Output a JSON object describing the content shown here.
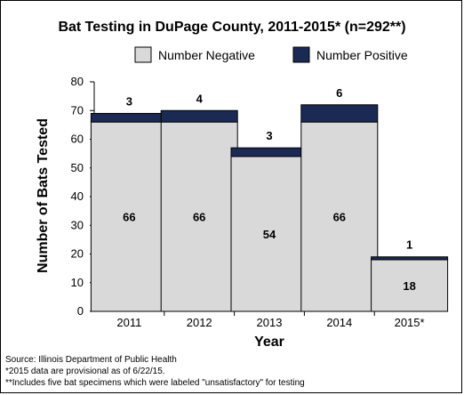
{
  "chart_data": {
    "type": "bar",
    "stacked": true,
    "title": "Bat Testing in DuPage County, 2011-2015* (n=292**)",
    "xlabel": "Year",
    "ylabel": "Number of Bats Tested",
    "categories": [
      "2011",
      "2012",
      "2013",
      "2014",
      "2015*"
    ],
    "series": [
      {
        "name": "Number Negative",
        "values": [
          66,
          66,
          54,
          66,
          18
        ],
        "color": "#d9d9d9"
      },
      {
        "name": "Number Positive",
        "values": [
          3,
          4,
          3,
          6,
          1
        ],
        "color": "#1a2a55"
      }
    ],
    "ylim": [
      0,
      80
    ],
    "yticks": [
      0,
      10,
      20,
      30,
      40,
      50,
      60,
      70,
      80
    ],
    "grid": false,
    "legend": "top"
  },
  "notes": {
    "source": "Source: Illinois Department of Public Health",
    "note1": "*2015 data are provisional as of 6/22/15.",
    "note2": "**Includes five bat specimens which were labeled \"unsatisfactory\" for testing"
  }
}
